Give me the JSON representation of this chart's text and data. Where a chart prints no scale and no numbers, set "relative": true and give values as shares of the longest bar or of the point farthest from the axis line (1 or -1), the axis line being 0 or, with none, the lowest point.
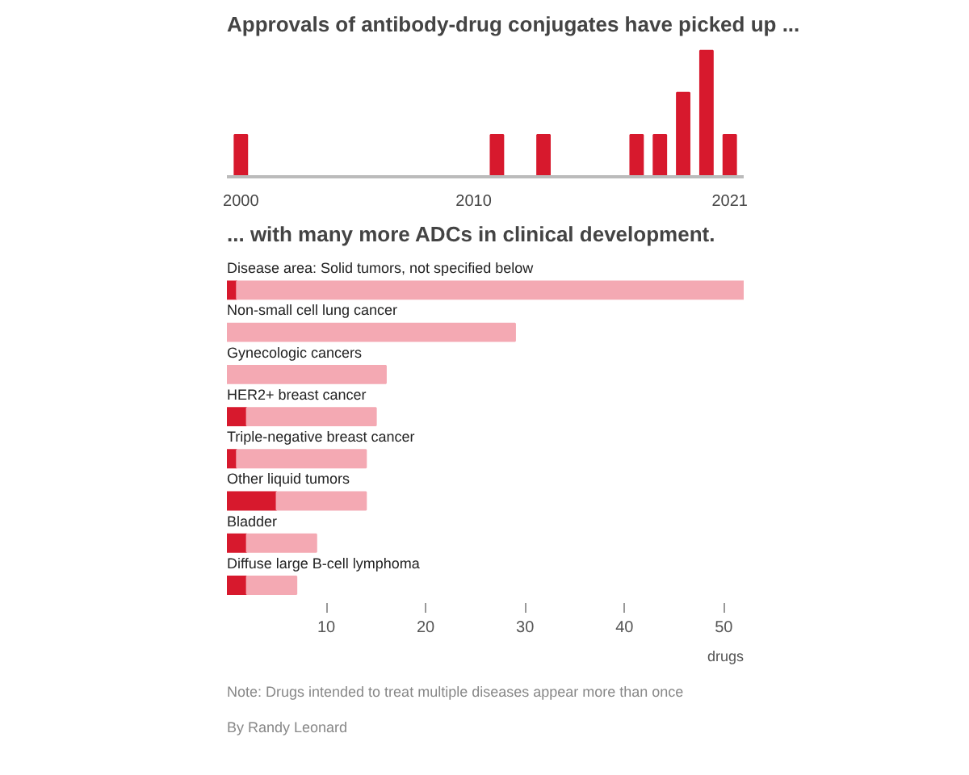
{
  "chart_data": [
    {
      "type": "bar",
      "title": "Approvals of antibody-drug conjugates have picked up ...",
      "relative": true,
      "x": [
        2000,
        2011,
        2013,
        2017,
        2018,
        2019,
        2020,
        2021
      ],
      "values": [
        0.333,
        0.333,
        0.333,
        0.333,
        0.333,
        0.667,
        1,
        0.333
      ],
      "color": "#d7192d",
      "xlim": [
        1999.4,
        2021.6
      ],
      "xticks": [
        2000,
        2010,
        2021
      ],
      "grid": false
    },
    {
      "type": "bar",
      "orientation": "horizontal",
      "stacked": true,
      "title": "... with many more ADCs in clinical development.",
      "categories": [
        "Disease area: Solid tumors, not specified below",
        "Non-small cell lung cancer",
        "Gynecologic cancers",
        "HER2+ breast cancer",
        "Triple-negative breast cancer",
        "Other liquid tumors",
        "Bladder",
        "Diffuse large B-cell lymphoma"
      ],
      "series": [
        {
          "color": "#d7192d",
          "values": [
            1,
            0,
            0,
            2,
            1,
            5,
            2,
            2
          ]
        },
        {
          "color": "#f4a9b3",
          "values": [
            51,
            29,
            16,
            13,
            13,
            9,
            7,
            5
          ]
        }
      ],
      "xlabel": "drugs",
      "xlim": [
        0,
        52
      ],
      "xticks": [
        10,
        20,
        30,
        40,
        50
      ],
      "grid": false,
      "annotations": [
        "Note: Drugs intended to treat multiple diseases appear more than once",
        "By Randy Leonard"
      ]
    }
  ]
}
